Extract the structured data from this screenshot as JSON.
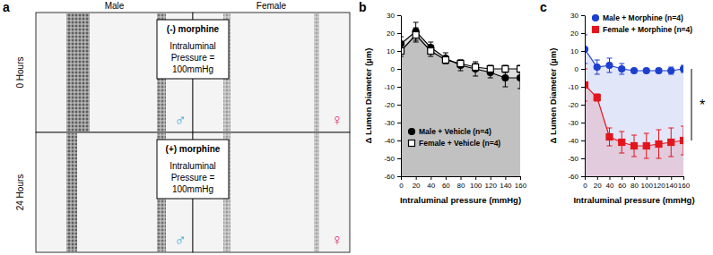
{
  "panel_a": {
    "panel_label": "a",
    "columns": [
      "Male",
      "Female"
    ],
    "rows": [
      "0 Hours",
      "24 Hours"
    ],
    "boxes": [
      {
        "lines": [
          "(-) morphine",
          "Intraluminal",
          "Pressure =",
          "100mmHg"
        ]
      },
      {
        "lines": [
          "(+) morphine",
          "Intraluminal",
          "Pressure =",
          "100mmHg"
        ]
      }
    ],
    "symbols": [
      "♂",
      "♀"
    ]
  },
  "chart_data": [
    {
      "type": "line",
      "panel_label": "b",
      "x_label": "Intraluminal pressure (mmHg)",
      "y_label": "Δ Lumen Diameter (µm)",
      "x": [
        0,
        20,
        40,
        60,
        80,
        100,
        120,
        140,
        160
      ],
      "xlim": [
        0,
        160
      ],
      "xticks": [
        0,
        20,
        40,
        60,
        80,
        100,
        120,
        140,
        160
      ],
      "ylim": [
        -60,
        30
      ],
      "yticks": [
        -60,
        -50,
        -40,
        -30,
        -20,
        -10,
        0,
        10,
        20,
        30
      ],
      "legend": "lower left",
      "series": [
        {
          "name": "Male + Vehicle (n=4)",
          "color": "#000000",
          "marker": "circle",
          "values": [
            14,
            21,
            12,
            6,
            2,
            0,
            -2,
            -5,
            -5
          ],
          "errors": [
            4,
            5,
            3,
            3,
            3,
            4,
            3,
            5,
            6
          ]
        },
        {
          "name": "Female + Vehicle (n=4)",
          "color": "#000000",
          "marker": "square-open",
          "values": [
            10,
            19,
            10,
            5,
            3,
            1,
            0,
            0,
            0
          ],
          "errors": [
            3,
            4,
            3,
            2,
            2,
            2,
            2,
            2,
            2
          ]
        }
      ]
    },
    {
      "type": "line",
      "panel_label": "c",
      "x_label": "Intraluminal pressure (mmHg)",
      "y_label": "Δ Lumen Diameter (µm)",
      "x": [
        0,
        20,
        40,
        60,
        80,
        100,
        120,
        140,
        160
      ],
      "xlim": [
        0,
        160
      ],
      "xticks": [
        0,
        20,
        40,
        60,
        80,
        100,
        120,
        140,
        160
      ],
      "ylim": [
        -60,
        30
      ],
      "yticks": [
        -60,
        -50,
        -40,
        -30,
        -20,
        -10,
        0,
        10,
        20,
        30
      ],
      "legend": "upper left",
      "annotations": [
        {
          "text": "*"
        }
      ],
      "series": [
        {
          "name": "Male + Morphine (n=4)",
          "color": "#1c3fd0",
          "marker": "circle",
          "values": [
            11,
            1,
            2,
            0,
            -1,
            -1,
            -1,
            -1,
            0
          ],
          "errors": [
            8,
            4,
            4,
            3,
            1,
            1,
            1,
            2,
            2
          ]
        },
        {
          "name": "Female + Morphine (n=4)",
          "color": "#e3141c",
          "marker": "square",
          "values": [
            -9,
            -16,
            -38,
            -41,
            -43,
            -43,
            -42,
            -41,
            -40
          ],
          "errors": [
            9,
            2,
            5,
            6,
            6,
            7,
            8,
            8,
            8
          ]
        }
      ]
    }
  ]
}
